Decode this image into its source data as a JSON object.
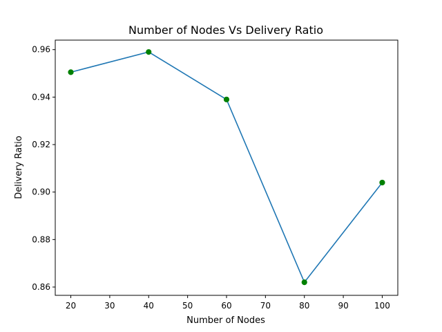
{
  "chart_data": {
    "type": "line",
    "title": "Number of Nodes Vs Delivery Ratio",
    "xlabel": "Number of Nodes",
    "ylabel": "Delivery Ratio",
    "x": [
      20,
      40,
      60,
      80,
      100
    ],
    "series": [
      {
        "name": "Delivery Ratio",
        "values": [
          0.9505,
          0.959,
          0.939,
          0.862,
          0.904
        ],
        "line_color": "#1f77b4",
        "marker_color": "#008000"
      }
    ],
    "xlim": [
      16,
      104
    ],
    "ylim": [
      0.8565,
      0.964
    ],
    "xticks": [
      20,
      30,
      40,
      50,
      60,
      70,
      80,
      90,
      100
    ],
    "xtick_labels": [
      "20",
      "30",
      "40",
      "50",
      "60",
      "70",
      "80",
      "90",
      "100"
    ],
    "yticks": [
      0.86,
      0.88,
      0.9,
      0.92,
      0.94,
      0.96
    ],
    "ytick_labels": [
      "0.86",
      "0.88",
      "0.90",
      "0.92",
      "0.94",
      "0.96"
    ],
    "grid": false,
    "legend": false
  }
}
